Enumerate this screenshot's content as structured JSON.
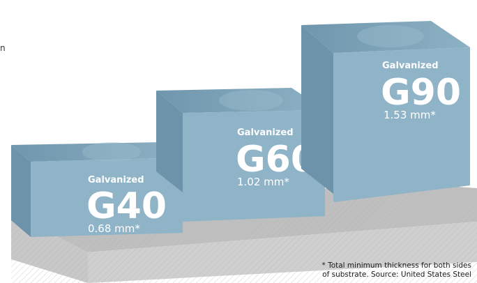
{
  "edge_text": "n",
  "colors": {
    "cube_front": "#8fb3c7",
    "cube_top": "#7aa3bb",
    "cube_side": "#6f98b0",
    "ground_front": "#c9c9c9",
    "ground_top": "#bdbdbd"
  },
  "blocks": [
    {
      "kicker": "Galvanized",
      "grade": "G40",
      "thickness": "0.68 mm*"
    },
    {
      "kicker": "Galvanized",
      "grade": "G60",
      "thickness": "1.02 mm*"
    },
    {
      "kicker": "Galvanized",
      "grade": "G90",
      "thickness": "1.53 mm*"
    }
  ],
  "footnote": {
    "line1": "* Total minimum thickness for both sides",
    "line2": "of substrate. Source: United States Steel"
  }
}
